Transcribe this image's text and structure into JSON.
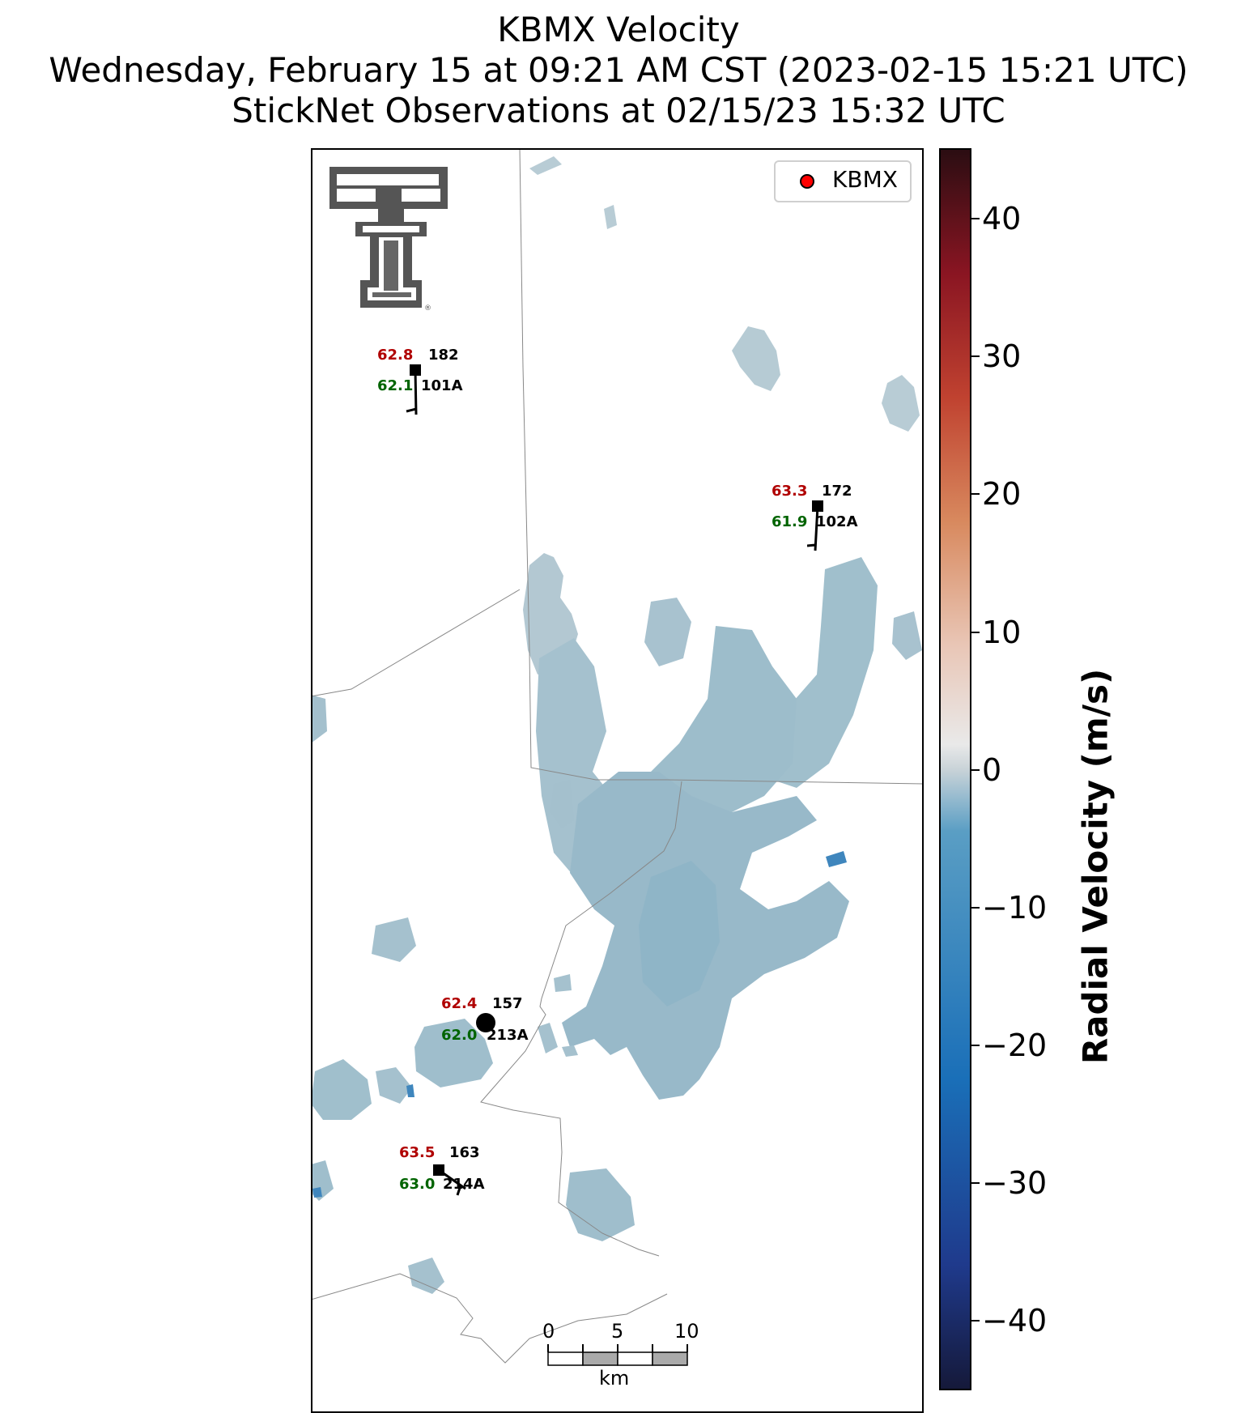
{
  "title": {
    "line1": "KBMX Velocity",
    "line2": "Wednesday, February 15 at 09:21 AM CST (2023-02-15 15:21 UTC)",
    "line3": "StickNet Observations at 02/15/23 15:32 UTC"
  },
  "legend": {
    "label": "KBMX",
    "marker_color": "#ff0000"
  },
  "logo": {
    "name": "texas-tech-double-t-logo"
  },
  "stations": [
    {
      "id": "101A",
      "temp": "62.8",
      "dewpoint": "62.1",
      "pressure": "182"
    },
    {
      "id": "102A",
      "temp": "63.3",
      "dewpoint": "61.9",
      "pressure": "172"
    },
    {
      "id": "213A",
      "temp": "62.4",
      "dewpoint": "62.0",
      "pressure": "157"
    },
    {
      "id": "214A",
      "temp": "63.5",
      "dewpoint": "63.0",
      "pressure": "163"
    }
  ],
  "scale_bar": {
    "ticks": [
      "0",
      "5",
      "10"
    ],
    "unit": "km"
  },
  "colorbar": {
    "label": "Radial Velocity (m/s)",
    "min": -45,
    "max": 45,
    "ticks": [
      "40",
      "30",
      "20",
      "10",
      "0",
      "−10",
      "−20",
      "−30",
      "−40"
    ]
  },
  "colors": {
    "temperature_text": "#b00000",
    "dewpoint_text": "#006400",
    "echo_light": "#b3c8d2",
    "echo_mid": "#9cbccb",
    "echo_dark": "#7eadc3",
    "echo_strong": "#3f86bd"
  }
}
